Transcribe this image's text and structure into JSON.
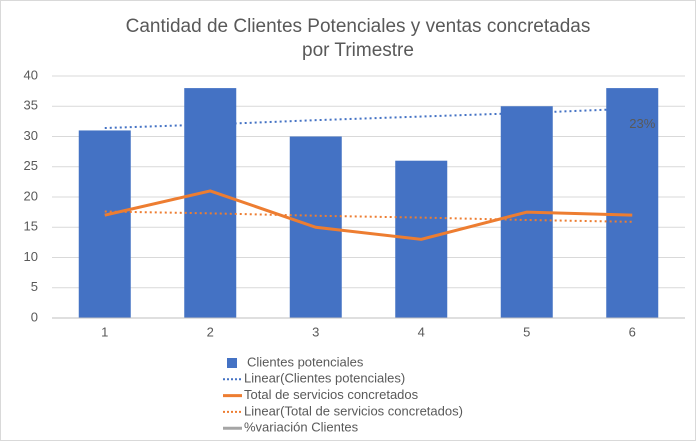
{
  "chart_data": {
    "type": "bar",
    "title": [
      "Cantidad de Clientes Potenciales y ventas concretadas",
      "por Trimestre"
    ],
    "categories": [
      "1",
      "2",
      "3",
      "4",
      "5",
      "6"
    ],
    "ylim": [
      0,
      40
    ],
    "yticks": [
      0,
      5,
      10,
      15,
      20,
      25,
      30,
      35,
      40
    ],
    "grid": true,
    "legend": "bottom",
    "series": [
      {
        "name": "Clientes potenciales",
        "type": "bar",
        "color": "#4472c4",
        "values": [
          31,
          38,
          30,
          26,
          35,
          38
        ]
      },
      {
        "name": "Linear(Clientes potenciales)",
        "type": "line",
        "style": "dotted",
        "color": "#4472c4",
        "values": [
          31.4,
          32.0,
          32.7,
          33.3,
          33.9,
          34.6
        ]
      },
      {
        "name": "Total de servicios concretados",
        "type": "line",
        "style": "solid",
        "color": "#ed7d31",
        "values": [
          17,
          21,
          15,
          13,
          17.5,
          17
        ]
      },
      {
        "name": "Linear(Total de servicios concretados)",
        "type": "line",
        "style": "dotted",
        "color": "#ed7d31",
        "values": [
          17.6,
          17.3,
          16.9,
          16.6,
          16.2,
          15.9
        ]
      },
      {
        "name": "%variación Clientes",
        "type": "line",
        "style": "solid",
        "color": "#a5a5a5"
      }
    ],
    "annotations": [
      {
        "text": "23%",
        "x": 6,
        "y": 32
      }
    ]
  }
}
